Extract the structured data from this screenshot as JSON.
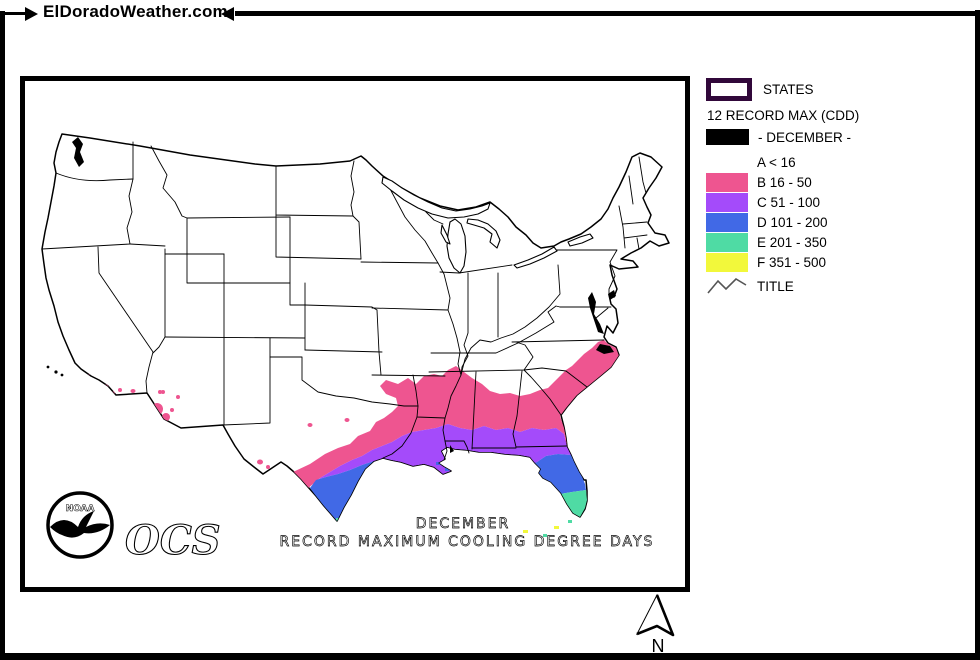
{
  "header": {
    "site_title": "ElDoradoWeather.com"
  },
  "colors": {
    "states_border": "#31083A",
    "pink": "#EE5590",
    "purple": "#A44BFA",
    "blue": "#4169E6",
    "green": "#4FDBA4",
    "yellow": "#F2F83B"
  },
  "legend": {
    "states_label": "STATES",
    "heading": "12 RECORD MAX (CDD)",
    "december_label": "- DECEMBER -",
    "classes": [
      {
        "label": "A < 16",
        "color": "transparent"
      },
      {
        "label": "B 16 - 50",
        "color": "#EE5590"
      },
      {
        "label": "C 51 - 100",
        "color": "#A44BFA"
      },
      {
        "label": "D 101 - 200",
        "color": "#4169E6"
      },
      {
        "label": "E 201 - 350",
        "color": "#4FDBA4"
      },
      {
        "label": "F 351 - 500",
        "color": "#F2F83B"
      }
    ],
    "title_label": "TITLE"
  },
  "map": {
    "title_line1": "DECEMBER",
    "title_line2": "RECORD MAXIMUM COOLING DEGREE DAYS",
    "noaa_label": "NOAA",
    "ocs_label": "OCS"
  },
  "compass": {
    "north_label": "N"
  }
}
